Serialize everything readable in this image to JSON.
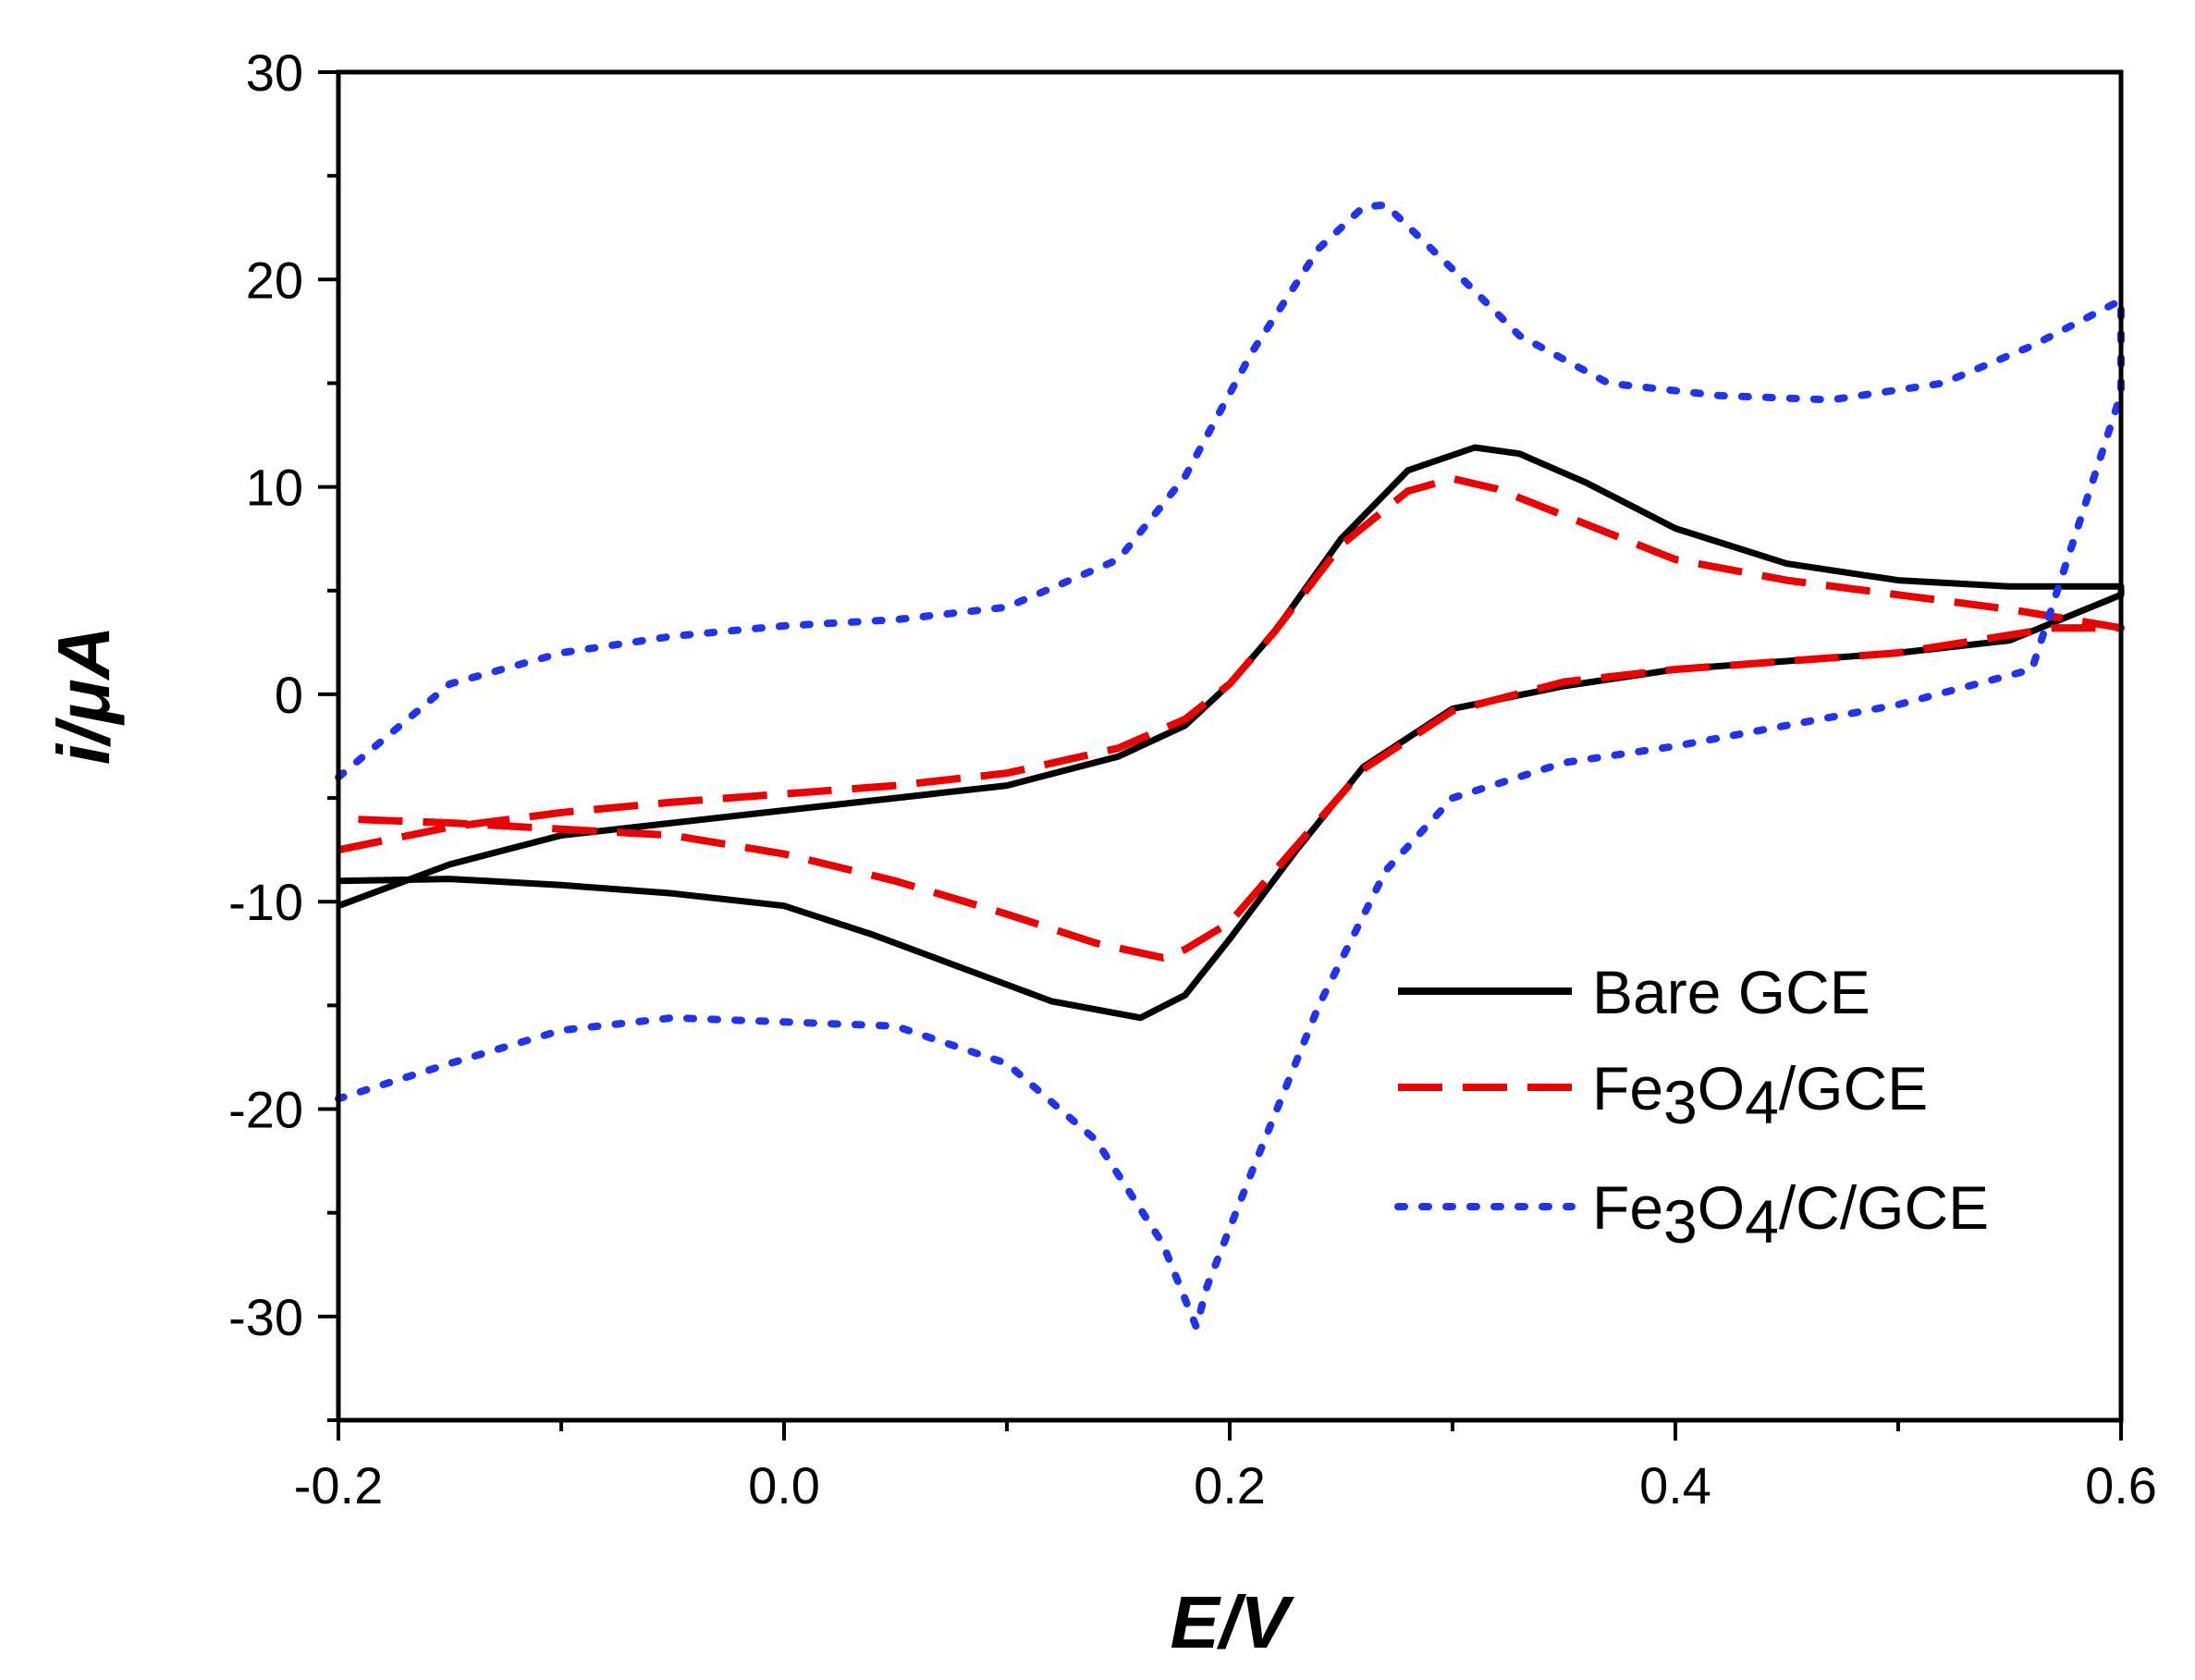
{
  "chart_data": {
    "type": "line",
    "title": "",
    "xlabel": "E/V",
    "xlabel_italic_part": "E",
    "xlabel_plain_part": "/V",
    "ylabel": "i/μA",
    "ylabel_italic_part": "i",
    "ylabel_plain_part": "/μA",
    "xlim": [
      -0.2,
      0.6
    ],
    "ylim": [
      -35,
      30
    ],
    "xticks": [
      -0.2,
      0.0,
      0.2,
      0.4,
      0.6
    ],
    "xtick_labels": [
      "-0.2",
      "0.0",
      "0.2",
      "0.4",
      "0.6"
    ],
    "yticks": [
      -30,
      -20,
      -10,
      0,
      10,
      20,
      30
    ],
    "ytick_labels": [
      "-30",
      "-20",
      "-10",
      "0",
      "10",
      "20",
      "30"
    ],
    "grid": false,
    "legend_position": "lower-right",
    "series": [
      {
        "name": "Bare GCE",
        "legend_parts": [
          {
            "t": "Bare GCE",
            "sub": false
          }
        ],
        "color": "#000000",
        "style": "solid",
        "x": [
          -0.2,
          -0.15,
          -0.1,
          -0.05,
          0.0,
          0.05,
          0.1,
          0.15,
          0.18,
          0.2,
          0.22,
          0.25,
          0.28,
          0.31,
          0.33,
          0.36,
          0.4,
          0.45,
          0.5,
          0.55,
          0.6,
          0.6,
          0.55,
          0.5,
          0.45,
          0.4,
          0.35,
          0.3,
          0.26,
          0.23,
          0.2,
          0.18,
          0.16,
          0.12,
          0.08,
          0.04,
          0.0,
          -0.05,
          -0.1,
          -0.15,
          -0.2
        ],
        "y": [
          -10.2,
          -8.2,
          -6.8,
          -6.2,
          -5.6,
          -5.0,
          -4.4,
          -3.0,
          -1.5,
          0.5,
          3.0,
          7.5,
          10.8,
          11.9,
          11.6,
          10.2,
          8.0,
          6.3,
          5.5,
          5.2,
          5.2,
          4.8,
          2.6,
          2.0,
          1.6,
          1.2,
          0.4,
          -0.7,
          -3.5,
          -7.5,
          -11.8,
          -14.5,
          -15.6,
          -14.8,
          -13.2,
          -11.6,
          -10.2,
          -9.6,
          -9.2,
          -8.9,
          -9.0
        ]
      },
      {
        "name": "Fe3O4/GCE",
        "legend_parts": [
          {
            "t": "Fe",
            "sub": false
          },
          {
            "t": "3",
            "sub": true
          },
          {
            "t": "O",
            "sub": false
          },
          {
            "t": "4",
            "sub": true
          },
          {
            "t": "/GCE",
            "sub": false
          }
        ],
        "color": "#ee0000",
        "style": "dashed",
        "x": [
          -0.2,
          -0.15,
          -0.1,
          -0.05,
          0.0,
          0.05,
          0.1,
          0.15,
          0.18,
          0.2,
          0.22,
          0.25,
          0.28,
          0.3,
          0.32,
          0.36,
          0.4,
          0.45,
          0.5,
          0.55,
          0.6,
          0.6,
          0.57,
          0.5,
          0.45,
          0.4,
          0.35,
          0.3,
          0.26,
          0.23,
          0.2,
          0.18,
          0.17,
          0.14,
          0.1,
          0.05,
          0.0,
          -0.05,
          -0.1,
          -0.15,
          -0.2
        ],
        "y": [
          -7.5,
          -6.4,
          -5.7,
          -5.2,
          -4.8,
          -4.4,
          -3.8,
          -2.6,
          -1.2,
          0.5,
          3.0,
          7.2,
          9.8,
          10.4,
          9.9,
          8.2,
          6.5,
          5.5,
          4.8,
          4.1,
          3.2,
          3.2,
          3.2,
          2.0,
          1.6,
          1.2,
          0.6,
          -0.8,
          -3.6,
          -7.3,
          -11.0,
          -12.3,
          -12.7,
          -12.0,
          -10.6,
          -9.0,
          -7.7,
          -6.8,
          -6.5,
          -6.2,
          -6.0
        ]
      },
      {
        "name": "Fe3O4/C/GCE",
        "legend_parts": [
          {
            "t": "Fe",
            "sub": false
          },
          {
            "t": "3",
            "sub": true
          },
          {
            "t": "O",
            "sub": false
          },
          {
            "t": "4",
            "sub": true
          },
          {
            "t": "/C/GCE",
            "sub": false
          }
        ],
        "color": "#2233ee",
        "style": "dotted",
        "x": [
          -0.2,
          -0.15,
          -0.1,
          -0.05,
          0.0,
          0.05,
          0.1,
          0.15,
          0.18,
          0.21,
          0.24,
          0.26,
          0.27,
          0.3,
          0.33,
          0.37,
          0.42,
          0.47,
          0.52,
          0.56,
          0.6,
          0.6,
          0.56,
          0.5,
          0.45,
          0.4,
          0.35,
          0.3,
          0.27,
          0.24,
          0.21,
          0.19,
          0.185,
          0.17,
          0.14,
          0.1,
          0.05,
          0.0,
          -0.05,
          -0.1,
          -0.15,
          -0.2
        ],
        "y": [
          -4.0,
          0.5,
          2.0,
          2.8,
          3.3,
          3.6,
          4.2,
          6.5,
          10.5,
          16.5,
          21.5,
          23.5,
          23.6,
          20.5,
          17.3,
          15.0,
          14.4,
          14.2,
          15.0,
          16.8,
          19.0,
          14.5,
          1.2,
          -0.5,
          -1.5,
          -2.5,
          -3.3,
          -5.0,
          -8.5,
          -15.0,
          -23.0,
          -28.5,
          -30.5,
          -26.5,
          -21.5,
          -17.8,
          -16.0,
          -15.8,
          -15.6,
          -16.2,
          -17.8,
          -19.5
        ]
      }
    ]
  }
}
